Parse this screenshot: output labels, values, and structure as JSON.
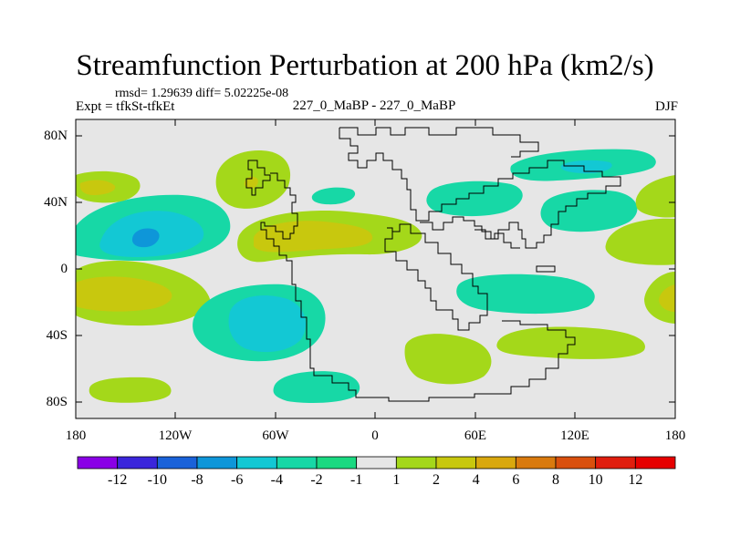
{
  "chart_data": {
    "type": "contour-map",
    "title": "Streamfunction Perturbation at 200 hPa (km2/s)",
    "stats_label": "rmsd= 1.29639 diff= 5.02225e-08",
    "left_label": "Expt = tfkSt-tfkEt",
    "center_label": "227_0_MaBP - 227_0_MaBP",
    "right_label": "DJF",
    "x_ticks": [
      "180",
      "120W",
      "60W",
      "0",
      "60E",
      "120E",
      "180"
    ],
    "y_ticks": [
      "80N",
      "40N",
      "0",
      "40S",
      "80S"
    ],
    "colorbar": {
      "labels": [
        "-12",
        "-10",
        "-8",
        "-6",
        "-4",
        "-2",
        "-1",
        "1",
        "2",
        "4",
        "6",
        "8",
        "10",
        "12"
      ],
      "colors": [
        "#8a00e6",
        "#3a26db",
        "#1a62d9",
        "#0e96d9",
        "#13c8d4",
        "#17d8a6",
        "#1ad981",
        "#e6e6e6",
        "#a4d81a",
        "#c8c80e",
        "#d9a80e",
        "#d97a0e",
        "#d9500e",
        "#e01e0e",
        "#e60000"
      ]
    },
    "field_colors": {
      "neutral": "#e6e6e6",
      "pos1": "#a4d81a",
      "pos2": "#c8c80e",
      "neg1": "#17d8a6",
      "neg2": "#13c8d4",
      "neg3": "#0e96d9"
    }
  }
}
